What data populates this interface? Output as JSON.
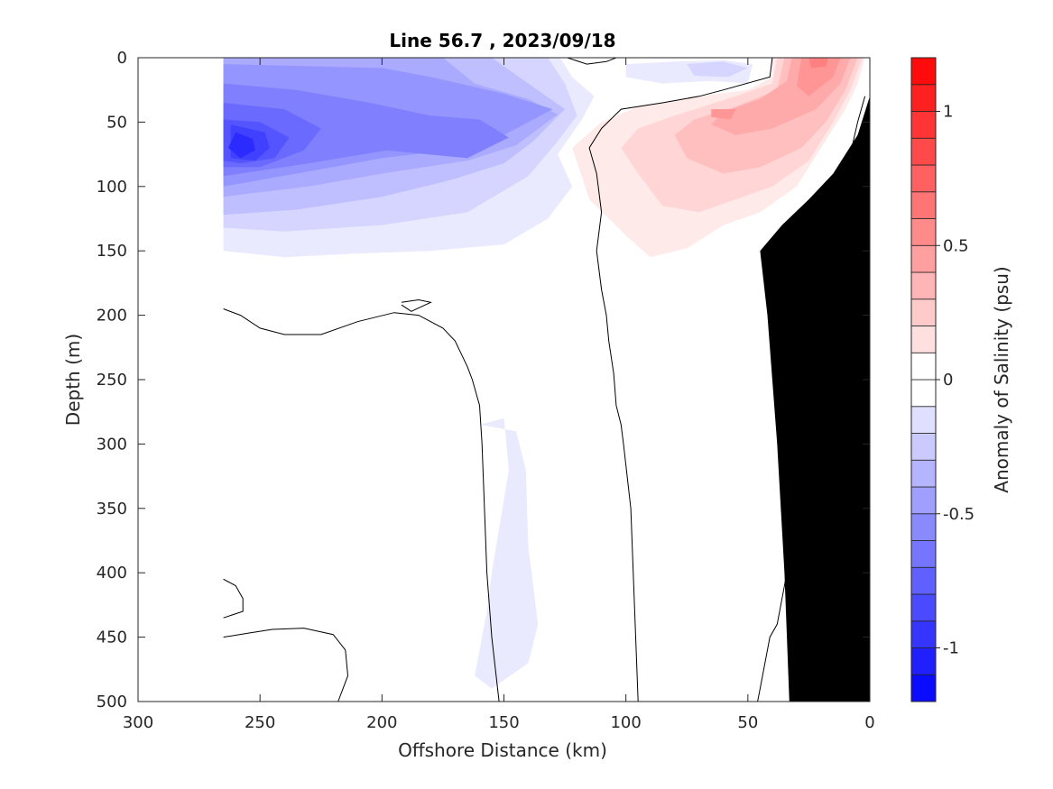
{
  "chart_data": {
    "type": "contour",
    "title": "Line 56.7 , 2023/09/18",
    "xlabel": "Offshore Distance (km)",
    "ylabel": "Depth (m)",
    "xlim": [
      300,
      0
    ],
    "ylim": [
      0,
      500
    ],
    "x_reversed": true,
    "y_reversed": true,
    "x_ticks": [
      300,
      250,
      200,
      150,
      100,
      50,
      0
    ],
    "y_ticks": [
      0,
      50,
      100,
      150,
      200,
      250,
      300,
      350,
      400,
      450,
      500
    ],
    "colorbar": {
      "label": "Anomaly of Salinity (psu)",
      "range": [
        -1.2,
        1.2
      ],
      "step": 0.1,
      "ticks": [
        -1,
        -0.5,
        0,
        0.5,
        1
      ],
      "tick_labels": [
        "-1",
        "-0.5",
        "0",
        "0.5",
        "1"
      ],
      "negative_color": "#0000ff",
      "zero_color": "#ffffff",
      "positive_color": "#ff0000"
    },
    "regions": [
      {
        "id": "blue1",
        "level": -0.1,
        "pts": [
          [
            265,
            0
          ],
          [
            127,
            0
          ],
          [
            122,
            15
          ],
          [
            113,
            30
          ],
          [
            118,
            48
          ],
          [
            128,
            75
          ],
          [
            122,
            100
          ],
          [
            132,
            125
          ],
          [
            150,
            145
          ],
          [
            180,
            150
          ],
          [
            210,
            152
          ],
          [
            240,
            155
          ],
          [
            265,
            150
          ]
        ]
      },
      {
        "id": "blue2",
        "level": -0.2,
        "pts": [
          [
            265,
            0
          ],
          [
            132,
            0
          ],
          [
            125,
            20
          ],
          [
            120,
            45
          ],
          [
            128,
            65
          ],
          [
            140,
            92
          ],
          [
            165,
            120
          ],
          [
            200,
            130
          ],
          [
            240,
            135
          ],
          [
            265,
            132
          ]
        ]
      },
      {
        "id": "blue3",
        "level": -0.3,
        "pts": [
          [
            265,
            0
          ],
          [
            155,
            0
          ],
          [
            140,
            20
          ],
          [
            125,
            40
          ],
          [
            138,
            65
          ],
          [
            150,
            82
          ],
          [
            172,
            95
          ],
          [
            200,
            108
          ],
          [
            235,
            118
          ],
          [
            265,
            122
          ]
        ]
      },
      {
        "id": "blue4",
        "level": -0.4,
        "pts": [
          [
            265,
            0
          ],
          [
            175,
            0
          ],
          [
            162,
            20
          ],
          [
            140,
            32
          ],
          [
            128,
            44
          ],
          [
            145,
            68
          ],
          [
            165,
            80
          ],
          [
            200,
            90
          ],
          [
            230,
            100
          ],
          [
            265,
            108
          ]
        ]
      },
      {
        "id": "blue5",
        "level": -0.5,
        "pts": [
          [
            265,
            5
          ],
          [
            200,
            8
          ],
          [
            180,
            15
          ],
          [
            150,
            28
          ],
          [
            130,
            40
          ],
          [
            150,
            60
          ],
          [
            165,
            70
          ],
          [
            200,
            78
          ],
          [
            235,
            90
          ],
          [
            265,
            100
          ]
        ]
      },
      {
        "id": "blue6",
        "level": -0.6,
        "pts": [
          [
            265,
            20
          ],
          [
            235,
            25
          ],
          [
            205,
            35
          ],
          [
            180,
            45
          ],
          [
            160,
            48
          ],
          [
            148,
            62
          ],
          [
            165,
            78
          ],
          [
            198,
            72
          ],
          [
            230,
            82
          ],
          [
            265,
            92
          ]
        ]
      },
      {
        "id": "blue7",
        "level": -0.7,
        "pts": [
          [
            265,
            35
          ],
          [
            240,
            40
          ],
          [
            225,
            55
          ],
          [
            232,
            72
          ],
          [
            250,
            85
          ],
          [
            265,
            85
          ]
        ]
      },
      {
        "id": "blue8",
        "level": -0.8,
        "pts": [
          [
            265,
            48
          ],
          [
            250,
            50
          ],
          [
            238,
            62
          ],
          [
            244,
            78
          ],
          [
            258,
            82
          ],
          [
            265,
            80
          ]
        ]
      },
      {
        "id": "blue9",
        "level": -0.9,
        "pts": [
          [
            262,
            52
          ],
          [
            248,
            58
          ],
          [
            246,
            70
          ],
          [
            252,
            80
          ],
          [
            262,
            78
          ]
        ]
      },
      {
        "id": "blue10",
        "level": -1.0,
        "pts": [
          [
            260,
            58
          ],
          [
            253,
            63
          ],
          [
            252,
            72
          ],
          [
            258,
            78
          ],
          [
            263,
            70
          ]
        ]
      },
      {
        "id": "blueDeep",
        "level": -0.1,
        "pts": [
          [
            160,
            285
          ],
          [
            150,
            280
          ],
          [
            148,
            320
          ],
          [
            155,
            400
          ],
          [
            157,
            430
          ],
          [
            162,
            480
          ],
          [
            155,
            490
          ],
          [
            140,
            470
          ],
          [
            136,
            440
          ],
          [
            140,
            380
          ],
          [
            141,
            320
          ],
          [
            145,
            290
          ]
        ]
      },
      {
        "id": "blueSurf",
        "level": -0.1,
        "pts": [
          [
            100,
            5
          ],
          [
            80,
            3
          ],
          [
            60,
            2
          ],
          [
            48,
            5
          ],
          [
            50,
            20
          ],
          [
            65,
            18
          ],
          [
            85,
            20
          ],
          [
            100,
            15
          ]
        ]
      },
      {
        "id": "blueSurf2",
        "level": -0.2,
        "pts": [
          [
            75,
            5
          ],
          [
            60,
            3
          ],
          [
            50,
            8
          ],
          [
            58,
            15
          ],
          [
            72,
            14
          ]
        ]
      },
      {
        "id": "red1",
        "level": 0.1,
        "pts": [
          [
            40,
            0
          ],
          [
            2,
            0
          ],
          [
            5,
            20
          ],
          [
            10,
            40
          ],
          [
            20,
            70
          ],
          [
            30,
            100
          ],
          [
            45,
            120
          ],
          [
            60,
            130
          ],
          [
            75,
            148
          ],
          [
            90,
            155
          ],
          [
            100,
            138
          ],
          [
            115,
            110
          ],
          [
            122,
            70
          ],
          [
            110,
            50
          ],
          [
            95,
            38
          ],
          [
            70,
            30
          ],
          [
            50,
            25
          ],
          [
            40,
            15
          ]
        ]
      },
      {
        "id": "red2",
        "level": 0.2,
        "pts": [
          [
            38,
            0
          ],
          [
            3,
            0
          ],
          [
            8,
            25
          ],
          [
            15,
            50
          ],
          [
            25,
            80
          ],
          [
            40,
            100
          ],
          [
            55,
            110
          ],
          [
            70,
            120
          ],
          [
            85,
            115
          ],
          [
            95,
            90
          ],
          [
            102,
            70
          ],
          [
            95,
            55
          ],
          [
            80,
            45
          ],
          [
            55,
            30
          ],
          [
            40,
            20
          ]
        ]
      },
      {
        "id": "red3",
        "level": 0.3,
        "pts": [
          [
            35,
            0
          ],
          [
            5,
            0
          ],
          [
            10,
            25
          ],
          [
            18,
            50
          ],
          [
            28,
            70
          ],
          [
            45,
            85
          ],
          [
            60,
            90
          ],
          [
            75,
            78
          ],
          [
            80,
            60
          ],
          [
            72,
            48
          ],
          [
            55,
            38
          ],
          [
            38,
            25
          ]
        ]
      },
      {
        "id": "red4",
        "level": 0.4,
        "pts": [
          [
            32,
            0
          ],
          [
            8,
            0
          ],
          [
            12,
            20
          ],
          [
            22,
            40
          ],
          [
            40,
            55
          ],
          [
            55,
            60
          ],
          [
            65,
            52
          ],
          [
            60,
            42
          ],
          [
            45,
            32
          ],
          [
            34,
            18
          ]
        ]
      },
      {
        "id": "red5",
        "level": 0.5,
        "pts": [
          [
            28,
            0
          ],
          [
            12,
            0
          ],
          [
            15,
            15
          ],
          [
            25,
            30
          ],
          [
            30,
            22
          ]
        ]
      },
      {
        "id": "red6",
        "level": 0.6,
        "pts": [
          [
            25,
            0
          ],
          [
            17,
            0
          ],
          [
            18,
            7
          ],
          [
            24,
            8
          ]
        ]
      },
      {
        "id": "red7",
        "level": 0.5,
        "pts": [
          [
            65,
            40
          ],
          [
            55,
            40
          ],
          [
            57,
            48
          ],
          [
            65,
            46
          ]
        ]
      },
      {
        "id": "bathy",
        "level": "land",
        "pts": [
          [
            33,
            500
          ],
          [
            35,
            400
          ],
          [
            38,
            300
          ],
          [
            40,
            250
          ],
          [
            42,
            200
          ],
          [
            45,
            150
          ],
          [
            36,
            130
          ],
          [
            25,
            110
          ],
          [
            15,
            90
          ],
          [
            5,
            60
          ],
          [
            0,
            30
          ],
          [
            0,
            500
          ]
        ]
      }
    ],
    "zero_contours": [
      {
        "id": "z1",
        "pts": [
          [
            265,
            195
          ],
          [
            258,
            200
          ],
          [
            250,
            210
          ],
          [
            240,
            215
          ],
          [
            225,
            215
          ],
          [
            210,
            205
          ],
          [
            195,
            198
          ],
          [
            185,
            200
          ],
          [
            175,
            210
          ],
          [
            170,
            220
          ],
          [
            165,
            240
          ],
          [
            163,
            250
          ],
          [
            160,
            270
          ],
          [
            159,
            300
          ],
          [
            158,
            350
          ],
          [
            157,
            400
          ],
          [
            155,
            450
          ],
          [
            152,
            500
          ]
        ]
      },
      {
        "id": "z2",
        "pts": [
          [
            192,
            190
          ],
          [
            185,
            188
          ],
          [
            180,
            190
          ],
          [
            188,
            197
          ],
          [
            192,
            192
          ]
        ]
      },
      {
        "id": "z3",
        "pts": [
          [
            124,
            0
          ],
          [
            116,
            5
          ],
          [
            108,
            3
          ],
          [
            104,
            0
          ]
        ]
      },
      {
        "id": "z4",
        "pts": [
          [
            40,
            0
          ],
          [
            41,
            15
          ],
          [
            60,
            25
          ],
          [
            70,
            30
          ],
          [
            85,
            35
          ],
          [
            102,
            40
          ],
          [
            110,
            55
          ],
          [
            115,
            70
          ],
          [
            112,
            90
          ],
          [
            110,
            120
          ],
          [
            112,
            150
          ],
          [
            110,
            180
          ],
          [
            108,
            200
          ],
          [
            107,
            220
          ],
          [
            105,
            245
          ],
          [
            104,
            270
          ],
          [
            102,
            285
          ],
          [
            101,
            300
          ],
          [
            98,
            350
          ],
          [
            97,
            400
          ],
          [
            96,
            450
          ],
          [
            95,
            500
          ]
        ]
      },
      {
        "id": "z5",
        "pts": [
          [
            33,
            130
          ],
          [
            30,
            150
          ],
          [
            25,
            175
          ],
          [
            20,
            200
          ],
          [
            17,
            230
          ],
          [
            18,
            260
          ],
          [
            25,
            275
          ],
          [
            30,
            280
          ],
          [
            35,
            290
          ],
          [
            36,
            320
          ],
          [
            34,
            340
          ],
          [
            32,
            370
          ],
          [
            34,
            400
          ],
          [
            36,
            420
          ],
          [
            38,
            440
          ],
          [
            41,
            450
          ],
          [
            43,
            470
          ],
          [
            45,
            490
          ],
          [
            46,
            500
          ]
        ]
      },
      {
        "id": "z6",
        "pts": [
          [
            37,
            140
          ],
          [
            20,
            120
          ],
          [
            12,
            100
          ],
          [
            8,
            75
          ],
          [
            5,
            50
          ],
          [
            2,
            30
          ]
        ]
      },
      {
        "id": "z7",
        "pts": [
          [
            265,
            405
          ],
          [
            260,
            410
          ],
          [
            257,
            420
          ],
          [
            257,
            430
          ],
          [
            265,
            435
          ]
        ]
      },
      {
        "id": "z8",
        "pts": [
          [
            265,
            450
          ],
          [
            255,
            447
          ],
          [
            245,
            444
          ],
          [
            232,
            443
          ],
          [
            220,
            448
          ],
          [
            215,
            460
          ],
          [
            214,
            480
          ],
          [
            218,
            500
          ]
        ]
      }
    ]
  }
}
